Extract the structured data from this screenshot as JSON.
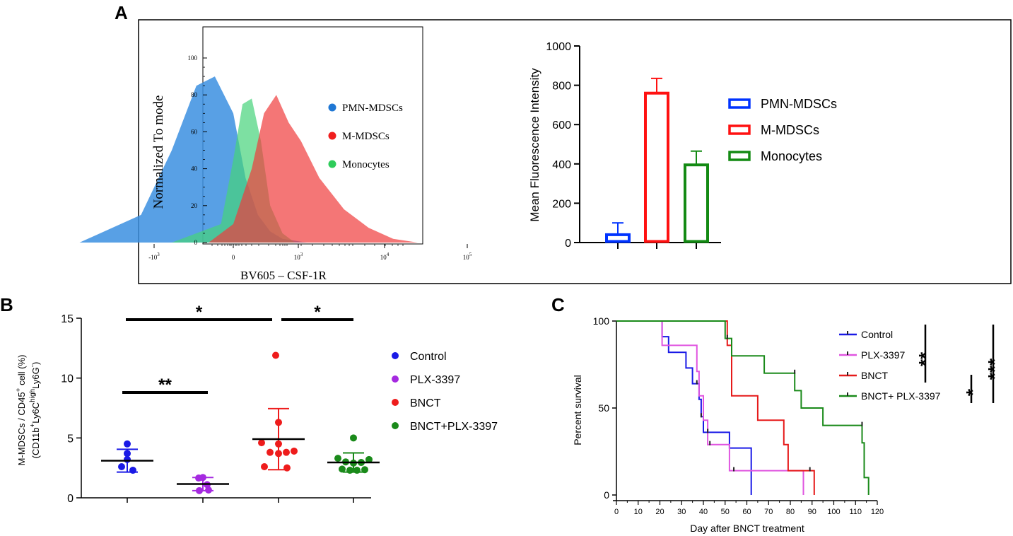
{
  "panels": {
    "a": "A",
    "b": "B",
    "c": "C"
  },
  "chart_data": [
    {
      "id": "A-histogram",
      "type": "area",
      "title": "",
      "xlabel": "BV605 – CSF-1R",
      "ylabel": "Normalized To mode",
      "x_scale": "biexponential",
      "x_ticks": [
        {
          "base": "-10",
          "exp": "3"
        },
        {
          "base": "0",
          "exp": ""
        },
        {
          "base": "10",
          "exp": "3"
        },
        {
          "base": "10",
          "exp": "4"
        },
        {
          "base": "10",
          "exp": "5"
        }
      ],
      "y_ticks": [
        "0",
        "20",
        "40",
        "60",
        "80",
        "100"
      ],
      "ylim": [
        0,
        100
      ],
      "legend": [
        {
          "name": "PMN-MDSCs",
          "color": "#1f77d4"
        },
        {
          "name": "M-MDSCs",
          "color": "#f01e1e"
        },
        {
          "name": "Monocytes",
          "color": "#2ecc5a"
        }
      ],
      "series": [
        {
          "name": "PMN-MDSCs",
          "color": "#3b8fe0",
          "x": [
            -2.5,
            -1.5,
            -1.0,
            -0.6,
            -0.3,
            0.0,
            0.2,
            0.4,
            0.6,
            0.8,
            1.0,
            1.2
          ],
          "y": [
            0,
            15,
            50,
            85,
            90,
            70,
            35,
            15,
            6,
            2,
            1,
            0
          ]
        },
        {
          "name": "Monocytes",
          "color": "#46d37a",
          "x": [
            -1.0,
            -0.2,
            0.0,
            0.15,
            0.3,
            0.45,
            0.6,
            0.8,
            1.0
          ],
          "y": [
            0,
            10,
            45,
            75,
            78,
            55,
            20,
            5,
            0
          ]
        },
        {
          "name": "M-MDSCs",
          "color": "#f03c3c",
          "x": [
            -0.4,
            0.0,
            0.3,
            0.5,
            0.7,
            0.9,
            1.1,
            1.4,
            1.8,
            2.2,
            2.6,
            3.0
          ],
          "y": [
            0,
            10,
            40,
            70,
            80,
            65,
            55,
            35,
            18,
            8,
            2,
            0
          ]
        }
      ]
    },
    {
      "id": "A-bar",
      "type": "bar",
      "title": "",
      "xlabel": "",
      "ylabel": "Mean Fluorescence Intensity",
      "ylim": [
        0,
        1000
      ],
      "y_ticks": [
        "0",
        "200",
        "400",
        "600",
        "800",
        "1000"
      ],
      "categories": [
        "PMN-MDSCs",
        "M-MDSCs",
        "Monocytes"
      ],
      "values": [
        40,
        760,
        395
      ],
      "errors": [
        60,
        75,
        70
      ],
      "colors": [
        "#0033ff",
        "#ff1111",
        "#138a13"
      ],
      "legend": [
        {
          "name": "PMN-MDSCs",
          "color": "#0033ff"
        },
        {
          "name": "M-MDSCs",
          "color": "#ff1111"
        },
        {
          "name": "Monocytes",
          "color": "#138a13"
        }
      ]
    },
    {
      "id": "B-scatter",
      "type": "scatter",
      "title": "",
      "xlabel": "",
      "ylabel_line1": "M-MDSCs / CD45",
      "ylabel_sup1": "+",
      "ylabel_line1b": " cell (%)",
      "ylabel_line2": "(CD11b",
      "ylabel_sup2": "+",
      "ylabel_line2b": "Ly6C",
      "ylabel_sup3": "high",
      "ylabel_line2c": "Ly6G",
      "ylabel_sup4": "-",
      "ylabel_line2d": ")",
      "ylim": [
        0,
        15
      ],
      "y_ticks": [
        "0",
        "5",
        "10",
        "15"
      ],
      "legend": [
        {
          "name": "Control",
          "color": "#1a1ae6"
        },
        {
          "name": "PLX-3397",
          "color": "#a52ae0"
        },
        {
          "name": "BNCT",
          "color": "#ee1c1c"
        },
        {
          "name": "BNCT+PLX-3397",
          "color": "#1a8a1a"
        }
      ],
      "groups": [
        {
          "name": "Control",
          "color": "#1a1ae6",
          "mean": 3.1,
          "sd": 0.95,
          "points": [
            4.5,
            3.7,
            3.2,
            2.6,
            2.3
          ]
        },
        {
          "name": "PLX-3397",
          "color": "#a52ae0",
          "mean": 1.15,
          "sd": 0.55,
          "points": [
            1.7,
            1.65,
            1.1,
            0.6,
            0.65
          ]
        },
        {
          "name": "BNCT",
          "color": "#ee1c1c",
          "mean": 4.9,
          "sd": 2.55,
          "points": [
            11.9,
            6.3,
            4.6,
            4.5,
            3.9,
            3.8,
            3.8,
            3.7,
            2.6,
            2.5
          ]
        },
        {
          "name": "BNCT+PLX-3397",
          "color": "#1a8a1a",
          "mean": 2.95,
          "sd": 0.8,
          "points": [
            5.0,
            3.3,
            3.2,
            3.0,
            2.95,
            2.9,
            2.4,
            2.35,
            2.3,
            2.3
          ]
        }
      ],
      "significance": [
        {
          "from": 0,
          "to": 2,
          "label": "*"
        },
        {
          "from": 2,
          "to": 3,
          "label": "*"
        },
        {
          "from": 0,
          "to": 1,
          "label": "**"
        }
      ]
    },
    {
      "id": "C-survival",
      "type": "line",
      "title": "",
      "xlabel": "Day after BNCT treatment",
      "ylabel": "Percent survival",
      "xlim": [
        0,
        120
      ],
      "ylim": [
        0,
        100
      ],
      "x_ticks": [
        "0",
        "10",
        "20",
        "30",
        "40",
        "50",
        "60",
        "70",
        "80",
        "90",
        "100",
        "110",
        "120"
      ],
      "y_ticks": [
        "0",
        "50",
        "100"
      ],
      "legend": [
        {
          "name": "Control",
          "color": "#1a1ae6"
        },
        {
          "name": "PLX-3397",
          "color": "#e055e0"
        },
        {
          "name": "BNCT",
          "color": "#e61a1a"
        },
        {
          "name": "BNCT+ PLX-3397",
          "color": "#1a8a1a"
        }
      ],
      "series": [
        {
          "name": "Control",
          "color": "#1a1ae6",
          "steps": [
            [
              0,
              100
            ],
            [
              21,
              91
            ],
            [
              24,
              82
            ],
            [
              32,
              73
            ],
            [
              35,
              64
            ],
            [
              38,
              55
            ],
            [
              39,
              45
            ],
            [
              40,
              36
            ],
            [
              44,
              36
            ],
            [
              52,
              27
            ],
            [
              62,
              0
            ]
          ]
        },
        {
          "name": "PLX-3397",
          "color": "#e055e0",
          "steps": [
            [
              0,
              100
            ],
            [
              21,
              86
            ],
            [
              37,
              71
            ],
            [
              38,
              57
            ],
            [
              40,
              43
            ],
            [
              42,
              29
            ],
            [
              52,
              14
            ],
            [
              86,
              0
            ]
          ]
        },
        {
          "name": "BNCT",
          "color": "#e61a1a",
          "steps": [
            [
              0,
              100
            ],
            [
              51,
              86
            ],
            [
              53,
              57
            ],
            [
              65,
              43
            ],
            [
              77,
              29
            ],
            [
              79,
              14
            ],
            [
              91,
              0
            ]
          ]
        },
        {
          "name": "BNCT+ PLX-3397",
          "color": "#1a8a1a",
          "steps": [
            [
              0,
              100
            ],
            [
              50,
              90
            ],
            [
              53,
              80
            ],
            [
              68,
              70
            ],
            [
              82,
              60
            ],
            [
              85,
              50
            ],
            [
              95,
              40
            ],
            [
              113,
              30
            ],
            [
              114,
              10
            ],
            [
              116,
              0
            ]
          ]
        }
      ],
      "censor_ticks": [
        {
          "series": 0,
          "x": 37,
          "y": 64
        },
        {
          "series": 0,
          "x": 39,
          "y": 45
        },
        {
          "series": 0,
          "x": 42,
          "y": 36
        },
        {
          "series": 1,
          "x": 43,
          "y": 29
        },
        {
          "series": 1,
          "x": 54,
          "y": 14
        },
        {
          "series": 2,
          "x": 89,
          "y": 14
        },
        {
          "series": 3,
          "x": 51,
          "y": 90
        },
        {
          "series": 3,
          "x": 82,
          "y": 70
        },
        {
          "series": 3,
          "x": 113,
          "y": 40
        }
      ],
      "significance": [
        {
          "label": "**",
          "pairs": "Control vs BNCT"
        },
        {
          "label": "*",
          "pairs": "BNCT vs BNCT+ PLX-3397"
        },
        {
          "label": "***",
          "pairs": "Control vs BNCT+ PLX-3397"
        }
      ]
    }
  ]
}
